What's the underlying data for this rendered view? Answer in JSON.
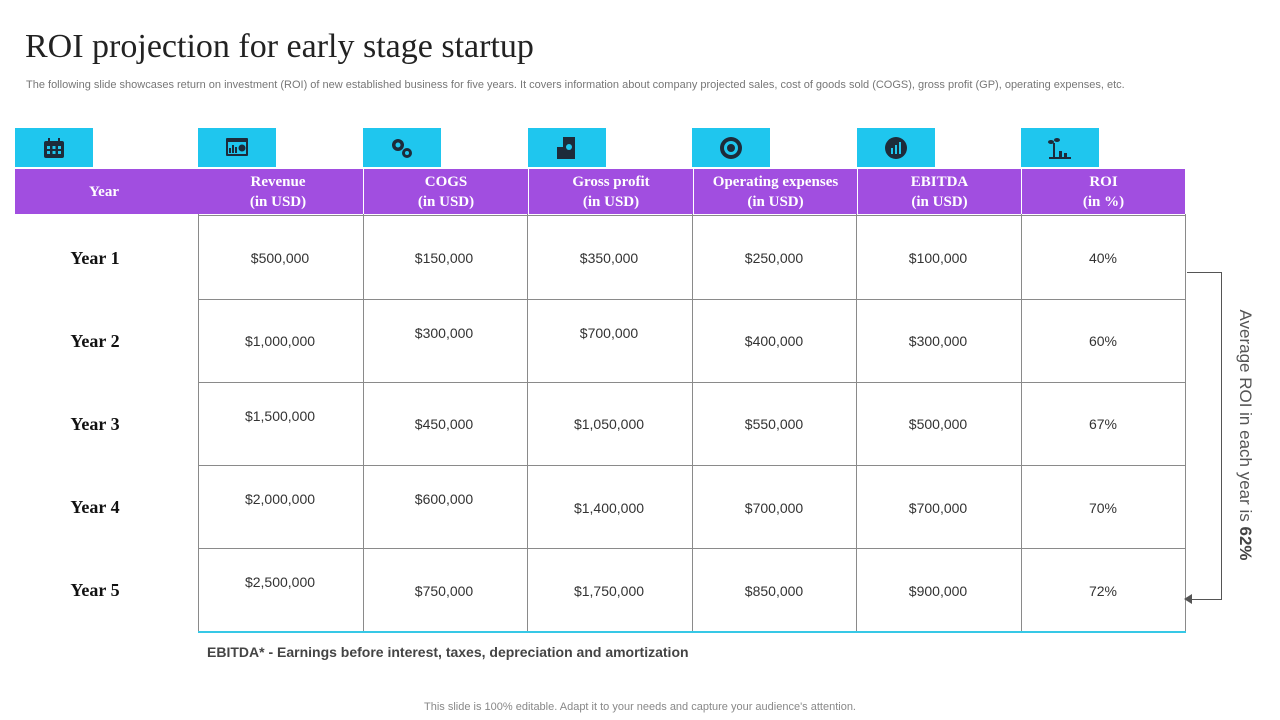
{
  "title": "ROI projection  for early  stage  startup",
  "subtitle": "The following slide showcases return on investment (ROI) of new established business for five years. It covers information about company projected sales, cost of goods sold (COGS), gross profit (GP), operating expenses, etc.",
  "icons": [
    "calendar-icon",
    "dashboard-icon",
    "gears-icon",
    "building-icon",
    "cog-icon",
    "pie-chart-icon",
    "plant-growth-icon"
  ],
  "colors": {
    "header": "#a14ee0",
    "icon_bg": "#1fc6ee",
    "accent_line": "#36c8e6"
  },
  "columns": [
    {
      "line1": "Year",
      "line2": ""
    },
    {
      "line1": "Revenue",
      "line2": "(in USD)"
    },
    {
      "line1": "COGS",
      "line2": "(in USD)"
    },
    {
      "line1": "Gross profit",
      "line2": "(in USD)"
    },
    {
      "line1": "Operating  expenses",
      "line2": "(in USD)"
    },
    {
      "line1": "EBITDA",
      "line2": "(in USD)"
    },
    {
      "line1": "ROI",
      "line2": "(in %)"
    }
  ],
  "rows": [
    {
      "year": "Year 1",
      "values": [
        "$500,000",
        "$150,000",
        "$350,000",
        "$250,000",
        "$100,000",
        "40%"
      ]
    },
    {
      "year": "Year 2",
      "values": [
        "$1,000,000",
        "$300,000",
        "$700,000",
        "$400,000",
        "$300,000",
        "60%"
      ]
    },
    {
      "year": "Year 3",
      "values": [
        "$1,500,000",
        "$450,000",
        "$1,050,000",
        "$550,000",
        "$500,000",
        "67%"
      ]
    },
    {
      "year": "Year 4",
      "values": [
        "$2,000,000",
        "$600,000",
        "$1,400,000",
        "$700,000",
        "$700,000",
        "70%"
      ]
    },
    {
      "year": "Year 5",
      "values": [
        "$2,500,000",
        "$750,000",
        "$1,750,000",
        "$850,000",
        "$900,000",
        "72%"
      ]
    }
  ],
  "side_note": {
    "prefix": "Average ROI in each year is ",
    "value": "62%"
  },
  "footnote": "EBITDA* - Earnings before interest, taxes, depreciation and amortization",
  "editable_note": "This slide is 100% editable. Adapt it to your needs and capture your audience's attention."
}
